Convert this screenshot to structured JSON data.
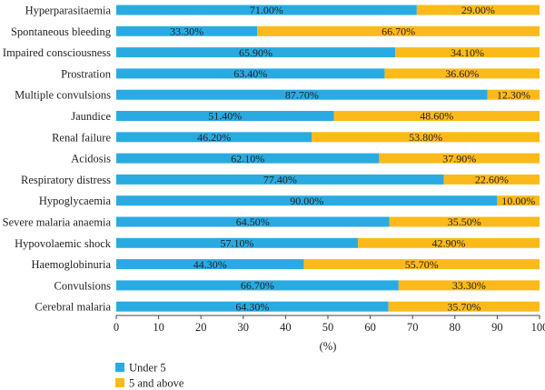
{
  "chart_data": {
    "type": "bar",
    "orientation": "horizontal",
    "stacked": true,
    "categories": [
      "Hyperparasitaemia",
      "Spontaneous bleeding",
      "Impaired consciousness",
      "Prostration",
      "Multiple convulsions",
      "Jaundice",
      "Renal failure",
      "Acidosis",
      "Respiratory distress",
      "Hypoglycaemia",
      "Severe malaria anaemia",
      "Hypovolaemic shock",
      "Haemoglobinuria",
      "Convulsions",
      "Cerebral malaria"
    ],
    "series": [
      {
        "name": "Under 5",
        "color": "#29ABE2",
        "values": [
          71.0,
          33.3,
          65.9,
          63.4,
          87.7,
          51.4,
          46.2,
          62.1,
          77.4,
          90.0,
          64.5,
          57.1,
          44.3,
          66.7,
          64.3
        ],
        "labels": [
          "71.00%",
          "33.30%",
          "65.90%",
          "63.40%",
          "87.70%",
          "51.40%",
          "46.20%",
          "62.10%",
          "77.40%",
          "90.00%",
          "64.50%",
          "57.10%",
          "44.30%",
          "66.70%",
          "64.30%"
        ]
      },
      {
        "name": "5 and above",
        "color": "#FBBA19",
        "values": [
          29.0,
          66.7,
          34.1,
          36.6,
          12.3,
          48.6,
          53.8,
          37.9,
          22.6,
          10.0,
          35.5,
          42.9,
          55.7,
          33.3,
          35.7
        ],
        "labels": [
          "29.00%",
          "66.70%",
          "34.10%",
          "36.60%",
          "12.30%",
          "48.60%",
          "53.80%",
          "37.90%",
          "22.60%",
          "10.00%",
          "35.50%",
          "42.90%",
          "55.70%",
          "33.30%",
          "35.70%"
        ]
      }
    ],
    "xlabel": "(%)",
    "ylabel": "",
    "xlim": [
      0,
      100
    ],
    "xticks": [
      0,
      10,
      20,
      30,
      40,
      50,
      60,
      70,
      80,
      90,
      100
    ],
    "grid": false,
    "legend_position": "bottom-left"
  }
}
